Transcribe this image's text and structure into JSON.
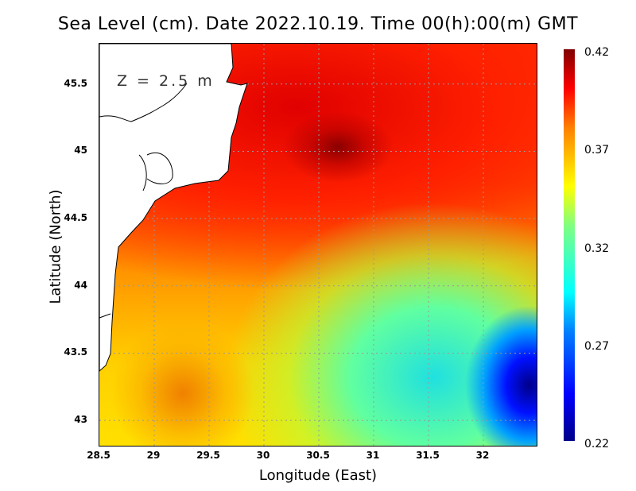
{
  "chart_data": {
    "type": "heatmap",
    "title": "Sea Level (cm). Date 2022.10.19. Time 00(h):00(m) GMT",
    "xlabel": "Longitude (East)",
    "ylabel": "Latitude (North)",
    "annotation": "Z = 2.5 m",
    "xlim": [
      28.5,
      32.5
    ],
    "ylim": [
      42.8,
      45.8
    ],
    "xticks": [
      "28.5",
      "29",
      "29.5",
      "30",
      "30.5",
      "31",
      "31.5",
      "32"
    ],
    "yticks": [
      "43",
      "43.5",
      "44",
      "44.5",
      "45",
      "45.5"
    ],
    "colorbar": {
      "ticks": [
        "0.42",
        "0.37",
        "0.32",
        "0.27",
        "0.22"
      ],
      "range": [
        0.22,
        0.42
      ],
      "colormap": "jet"
    },
    "grid": true,
    "features": [
      {
        "desc": "maximum",
        "lon": 30.6,
        "lat": 45.05,
        "value": 0.42
      },
      {
        "desc": "minimum",
        "lon": 32.3,
        "lat": 43.2,
        "value": 0.22
      },
      {
        "desc": "local low",
        "lon": 29.3,
        "lat": 43.2,
        "value": 0.36
      }
    ]
  }
}
